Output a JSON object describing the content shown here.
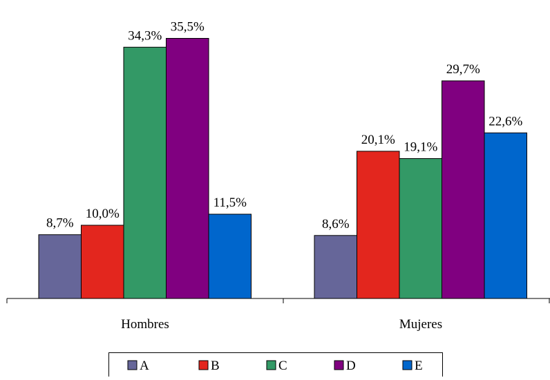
{
  "chart_data": {
    "type": "bar",
    "categories": [
      "Hombres",
      "Mujeres"
    ],
    "series": [
      {
        "name": "A",
        "values": [
          8.7,
          8.6
        ],
        "labels": [
          "8,7%",
          "8,6%"
        ],
        "color": "#666699"
      },
      {
        "name": "B",
        "values": [
          10.0,
          20.1
        ],
        "labels": [
          "10,0%",
          "20,1%"
        ],
        "color": "#e3261e"
      },
      {
        "name": "C",
        "values": [
          34.3,
          19.1
        ],
        "labels": [
          "34,3%",
          "19,1%"
        ],
        "color": "#339966"
      },
      {
        "name": "D",
        "values": [
          35.5,
          29.7
        ],
        "labels": [
          "35,5%",
          "29,7%"
        ],
        "color": "#800080"
      },
      {
        "name": "E",
        "values": [
          11.5,
          22.6
        ],
        "labels": [
          "11,5%",
          "22,6%"
        ],
        "color": "#0066cc"
      }
    ],
    "title": "",
    "xlabel": "",
    "ylabel": "",
    "ylim": [
      0,
      36.4
    ],
    "grid": false,
    "legend_position": "bottom"
  }
}
